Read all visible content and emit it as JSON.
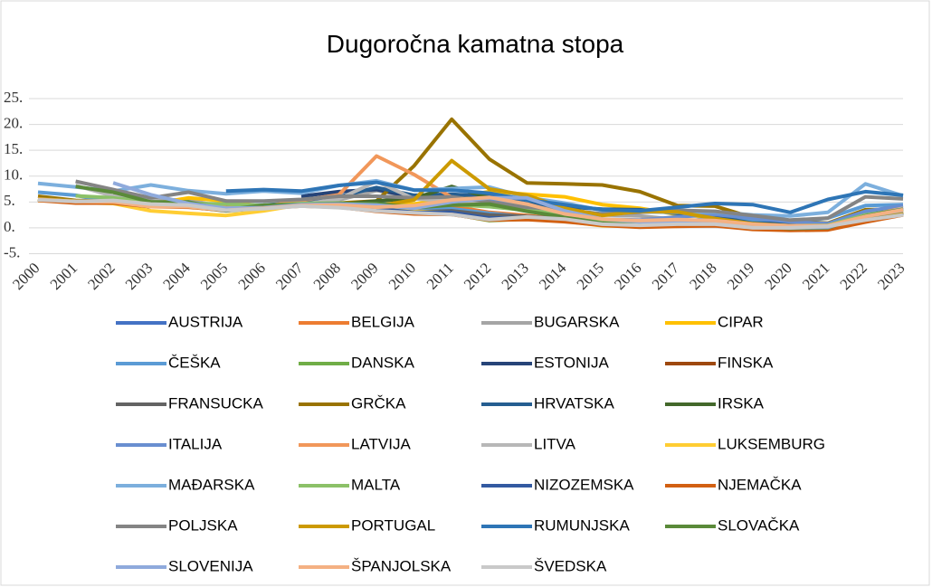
{
  "chart_data": {
    "type": "line",
    "title": "Dugoročna kamatna stopa",
    "categories": [
      "2000",
      "2001",
      "2002",
      "2003",
      "2004",
      "2005",
      "2006",
      "2007",
      "2008",
      "2009",
      "2010",
      "2011",
      "2012",
      "2013",
      "2014",
      "2015",
      "2016",
      "2017",
      "2018",
      "2019",
      "2020",
      "2021",
      "2022",
      "2023"
    ],
    "ylim": [
      -5,
      25
    ],
    "yticks": [
      {
        "value": -5,
        "label": "-5."
      },
      {
        "value": 0,
        "label": "0."
      },
      {
        "value": 5,
        "label": "5."
      },
      {
        "value": 10,
        "label": "10."
      },
      {
        "value": 15,
        "label": "15."
      },
      {
        "value": 20,
        "label": "20."
      },
      {
        "value": 25,
        "label": "25."
      }
    ],
    "grid": true,
    "legend": "bottom",
    "series": [
      {
        "name": "AUSTRIJA",
        "color": "#4472C4",
        "values": [
          5.6,
          5.1,
          5.0,
          4.2,
          4.2,
          3.4,
          3.8,
          4.3,
          4.4,
          3.9,
          3.2,
          3.3,
          2.4,
          2.0,
          1.5,
          0.7,
          0.4,
          0.6,
          0.7,
          0.1,
          -0.2,
          -0.1,
          1.7,
          3.1
        ]
      },
      {
        "name": "BELGIJA",
        "color": "#ED7D31",
        "values": [
          5.6,
          5.1,
          4.9,
          4.2,
          4.1,
          3.4,
          3.8,
          4.3,
          4.4,
          3.9,
          3.5,
          4.2,
          3.0,
          2.4,
          1.7,
          0.8,
          0.5,
          0.7,
          0.8,
          0.2,
          -0.1,
          0.0,
          1.7,
          3.2
        ]
      },
      {
        "name": "BUGARSKA",
        "color": "#A5A5A5",
        "values": [
          null,
          null,
          6.7,
          5.4,
          5.4,
          3.9,
          4.2,
          4.5,
          5.4,
          7.2,
          6.0,
          5.4,
          4.5,
          3.5,
          3.4,
          2.5,
          2.3,
          1.6,
          0.9,
          0.4,
          0.3,
          0.5,
          1.6,
          4.0
        ]
      },
      {
        "name": "CIPAR",
        "color": "#FFC000",
        "values": [
          5.3,
          5.0,
          4.8,
          4.6,
          5.8,
          5.2,
          4.1,
          4.5,
          4.6,
          4.6,
          4.6,
          5.8,
          7.0,
          6.5,
          6.0,
          4.5,
          3.8,
          2.6,
          2.0,
          0.6,
          0.3,
          0.1,
          2.7,
          3.5
        ]
      },
      {
        "name": "ČEŠKA",
        "color": "#5B9BD5",
        "values": [
          6.9,
          6.3,
          4.9,
          4.1,
          4.8,
          3.5,
          3.8,
          4.3,
          4.6,
          4.8,
          3.9,
          3.7,
          2.8,
          2.1,
          1.6,
          0.6,
          0.4,
          1.0,
          2.0,
          1.5,
          1.1,
          1.9,
          4.3,
          4.5
        ]
      },
      {
        "name": "DANSKA",
        "color": "#70AD47",
        "values": [
          5.6,
          5.1,
          5.1,
          4.3,
          4.3,
          3.4,
          3.8,
          4.3,
          4.3,
          3.6,
          2.9,
          2.7,
          1.4,
          1.7,
          1.3,
          0.7,
          0.3,
          0.5,
          0.5,
          -0.2,
          -0.4,
          0.0,
          1.8,
          2.6
        ]
      },
      {
        "name": "ESTONIJA",
        "color": "#264478",
        "values": [
          null,
          null,
          null,
          null,
          null,
          null,
          null,
          6.1,
          7.0,
          7.4,
          5.9,
          null,
          null,
          null,
          null,
          null,
          null,
          null,
          null,
          null,
          null,
          null,
          null,
          null
        ]
      },
      {
        "name": "FINSKA",
        "color": "#9E480E",
        "values": [
          5.5,
          5.0,
          5.0,
          4.1,
          4.1,
          3.4,
          3.8,
          4.3,
          4.3,
          3.7,
          3.0,
          3.0,
          1.9,
          1.9,
          1.4,
          0.7,
          0.4,
          0.5,
          0.7,
          0.1,
          -0.2,
          -0.1,
          1.8,
          3.0
        ]
      },
      {
        "name": "FRANSUCKA",
        "color": "#636363",
        "values": [
          5.4,
          4.9,
          4.9,
          4.1,
          4.1,
          3.4,
          3.8,
          4.3,
          4.2,
          3.6,
          3.1,
          3.3,
          2.5,
          2.2,
          1.7,
          0.8,
          0.5,
          0.8,
          0.8,
          0.1,
          -0.2,
          0.0,
          1.7,
          3.0
        ]
      },
      {
        "name": "GRČKA",
        "color": "#997300",
        "values": [
          6.1,
          5.3,
          5.1,
          4.3,
          4.3,
          3.6,
          4.1,
          4.5,
          4.8,
          5.2,
          12.0,
          21.0,
          13.3,
          8.7,
          8.5,
          8.3,
          7.0,
          4.3,
          4.2,
          2.0,
          1.3,
          0.9,
          3.5,
          3.6
        ]
      },
      {
        "name": "HRVATSKA",
        "color": "#255E91",
        "values": [
          null,
          null,
          null,
          null,
          null,
          4.4,
          4.4,
          4.9,
          6.0,
          7.8,
          6.3,
          6.5,
          6.1,
          4.7,
          4.1,
          3.6,
          3.5,
          2.8,
          2.2,
          0.9,
          0.8,
          0.5,
          2.7,
          3.8
        ]
      },
      {
        "name": "IRSKA",
        "color": "#43682B",
        "values": [
          5.5,
          5.0,
          5.0,
          4.1,
          4.1,
          3.3,
          3.8,
          4.3,
          4.5,
          5.2,
          5.7,
          8.0,
          5.8,
          3.8,
          2.4,
          1.2,
          0.7,
          0.8,
          1.0,
          0.3,
          -0.1,
          0.1,
          1.7,
          3.0
        ]
      },
      {
        "name": "ITALIJA",
        "color": "#698ED0",
        "values": [
          5.6,
          5.2,
          5.0,
          4.3,
          4.3,
          3.6,
          4.0,
          4.5,
          4.7,
          4.3,
          4.0,
          5.4,
          5.5,
          4.3,
          2.9,
          1.7,
          1.5,
          2.1,
          2.6,
          1.9,
          1.2,
          0.8,
          3.2,
          4.3
        ]
      },
      {
        "name": "LATVIJA",
        "color": "#F1975A",
        "values": [
          null,
          null,
          null,
          5.0,
          4.9,
          3.9,
          4.1,
          5.3,
          6.4,
          13.9,
          10.3,
          5.9,
          4.6,
          3.3,
          2.5,
          1.0,
          0.5,
          0.8,
          0.9,
          0.3,
          0.0,
          0.0,
          2.3,
          3.8
        ]
      },
      {
        "name": "LITVA",
        "color": "#B7B7B7",
        "values": [
          null,
          8.2,
          6.1,
          5.3,
          4.5,
          3.7,
          4.1,
          4.5,
          5.6,
          9.0,
          5.6,
          5.2,
          4.8,
          3.8,
          2.8,
          1.4,
          0.9,
          0.3,
          0.3,
          0.0,
          0.0,
          0.1,
          1.9,
          3.8
        ]
      },
      {
        "name": "LUKSEMBURG",
        "color": "#FFCD33",
        "values": [
          5.5,
          4.9,
          4.7,
          3.3,
          2.8,
          2.4,
          3.3,
          4.5,
          4.6,
          4.2,
          3.2,
          2.9,
          1.8,
          1.9,
          1.3,
          0.4,
          0.3,
          0.5,
          0.6,
          -0.1,
          -0.3,
          -0.2,
          1.7,
          3.1
        ]
      },
      {
        "name": "MAĐARSKA",
        "color": "#7CAFDD",
        "values": [
          8.6,
          7.9,
          7.1,
          8.3,
          7.2,
          6.6,
          7.1,
          6.7,
          8.2,
          9.1,
          7.3,
          7.6,
          7.9,
          5.9,
          4.8,
          3.4,
          3.1,
          3.0,
          3.1,
          2.5,
          2.3,
          3.0,
          8.5,
          6.2
        ]
      },
      {
        "name": "MALTA",
        "color": "#8CC168",
        "values": [
          null,
          6.2,
          5.8,
          5.0,
          4.7,
          4.6,
          4.3,
          4.7,
          4.8,
          4.5,
          4.2,
          4.5,
          4.1,
          3.4,
          2.6,
          1.5,
          0.9,
          1.3,
          1.4,
          0.7,
          0.4,
          0.5,
          2.5,
          3.5
        ]
      },
      {
        "name": "NIZOZEMSKA",
        "color": "#335AA1",
        "values": [
          5.4,
          5.0,
          4.9,
          4.1,
          4.1,
          3.4,
          3.8,
          4.3,
          4.2,
          3.7,
          3.0,
          3.0,
          1.9,
          2.0,
          1.5,
          0.7,
          0.3,
          0.5,
          0.6,
          -0.1,
          -0.4,
          -0.3,
          1.4,
          2.8
        ]
      },
      {
        "name": "NJEMAČKA",
        "color": "#D26012",
        "values": [
          5.3,
          4.8,
          4.8,
          4.1,
          4.0,
          3.4,
          3.8,
          4.2,
          4.0,
          3.2,
          2.7,
          2.6,
          1.5,
          1.6,
          1.2,
          0.5,
          0.1,
          0.3,
          0.4,
          -0.3,
          -0.5,
          -0.4,
          1.1,
          2.5
        ]
      },
      {
        "name": "POLJSKA",
        "color": "#848484",
        "values": [
          null,
          9.0,
          7.4,
          5.8,
          6.9,
          5.2,
          5.2,
          5.5,
          6.1,
          6.1,
          5.8,
          6.0,
          5.0,
          4.0,
          3.5,
          2.7,
          3.0,
          3.4,
          3.2,
          2.4,
          1.5,
          1.9,
          6.0,
          5.6
        ]
      },
      {
        "name": "PORTUGAL",
        "color": "#CC9A00",
        "values": [
          5.6,
          5.2,
          5.0,
          4.2,
          4.1,
          3.4,
          3.9,
          4.4,
          4.5,
          4.2,
          5.4,
          13.0,
          7.5,
          6.3,
          3.8,
          2.4,
          3.2,
          3.1,
          1.8,
          0.8,
          0.4,
          0.3,
          2.2,
          3.2
        ]
      },
      {
        "name": "RUMUNJSKA",
        "color": "#2E75B6",
        "values": [
          null,
          null,
          null,
          null,
          null,
          7.1,
          7.4,
          7.1,
          8.2,
          8.8,
          7.3,
          7.3,
          6.7,
          5.4,
          4.5,
          3.5,
          3.3,
          4.0,
          4.7,
          4.5,
          3.0,
          5.5,
          7.0,
          6.3
        ]
      },
      {
        "name": "SLOVAČKA",
        "color": "#5A8A39",
        "values": [
          null,
          8.0,
          6.9,
          5.0,
          5.0,
          3.5,
          4.4,
          4.5,
          4.7,
          4.7,
          3.9,
          4.4,
          4.6,
          3.2,
          2.1,
          0.9,
          0.5,
          0.9,
          0.9,
          0.3,
          -0.1,
          0.0,
          2.3,
          3.6
        ]
      },
      {
        "name": "SLOVENIJA",
        "color": "#8FAADC",
        "values": [
          null,
          null,
          8.7,
          6.4,
          4.7,
          3.8,
          3.9,
          4.5,
          4.6,
          4.4,
          3.8,
          5.0,
          5.8,
          5.8,
          3.3,
          1.7,
          1.2,
          1.0,
          0.9,
          0.3,
          0.0,
          0.1,
          2.2,
          3.4
        ]
      },
      {
        "name": "ŠPANJOLSKA",
        "color": "#F4B183",
        "values": [
          5.5,
          5.1,
          5.0,
          4.1,
          4.1,
          3.4,
          3.8,
          4.3,
          4.4,
          4.0,
          4.3,
          5.4,
          5.9,
          4.6,
          2.7,
          1.7,
          1.4,
          1.6,
          1.4,
          0.7,
          0.4,
          0.4,
          2.2,
          3.5
        ]
      },
      {
        "name": "ŠVEDSKA",
        "color": "#C9C9C9",
        "values": [
          5.4,
          5.1,
          5.3,
          4.6,
          4.4,
          3.4,
          3.7,
          4.2,
          3.9,
          3.3,
          2.9,
          2.6,
          1.6,
          2.1,
          1.7,
          0.7,
          0.5,
          0.7,
          0.7,
          0.0,
          0.0,
          0.3,
          1.5,
          2.5
        ]
      }
    ]
  }
}
